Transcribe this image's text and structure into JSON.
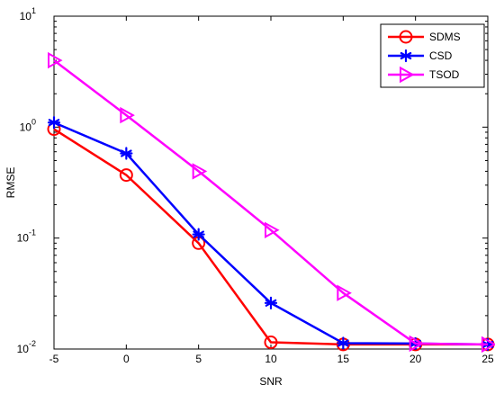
{
  "chart_data": {
    "type": "line",
    "title": "",
    "xlabel": "SNR",
    "ylabel": "RMSE",
    "xscale": "linear",
    "yscale": "log",
    "xlim": [
      -5,
      25
    ],
    "ylim": [
      0.01,
      10
    ],
    "grid": false,
    "legend_position": "top-right",
    "x": [
      -5,
      0,
      5,
      10,
      15,
      20,
      25
    ],
    "x_tick_labels": [
      "-5",
      "0",
      "5",
      "10",
      "15",
      "20",
      "25"
    ],
    "y_ticks": [
      {
        "value": 0.01,
        "base": "10",
        "exp": "-2"
      },
      {
        "value": 0.1,
        "base": "10",
        "exp": "-1"
      },
      {
        "value": 1,
        "base": "10",
        "exp": "0"
      },
      {
        "value": 10,
        "base": "10",
        "exp": "1"
      }
    ],
    "series": [
      {
        "name": "SDMS",
        "color": "#ff0000",
        "marker": "circle",
        "values": [
          0.96,
          0.37,
          0.09,
          0.0115,
          0.011,
          0.011,
          0.011
        ]
      },
      {
        "name": "CSD",
        "color": "#0000ff",
        "marker": "star",
        "values": [
          1.1,
          0.58,
          0.108,
          0.026,
          0.0113,
          0.0112,
          0.011
        ]
      },
      {
        "name": "TSOD",
        "color": "#ff00ff",
        "marker": "triangle-right",
        "values": [
          4.0,
          1.28,
          0.4,
          0.118,
          0.032,
          0.0112,
          0.011
        ]
      }
    ]
  }
}
